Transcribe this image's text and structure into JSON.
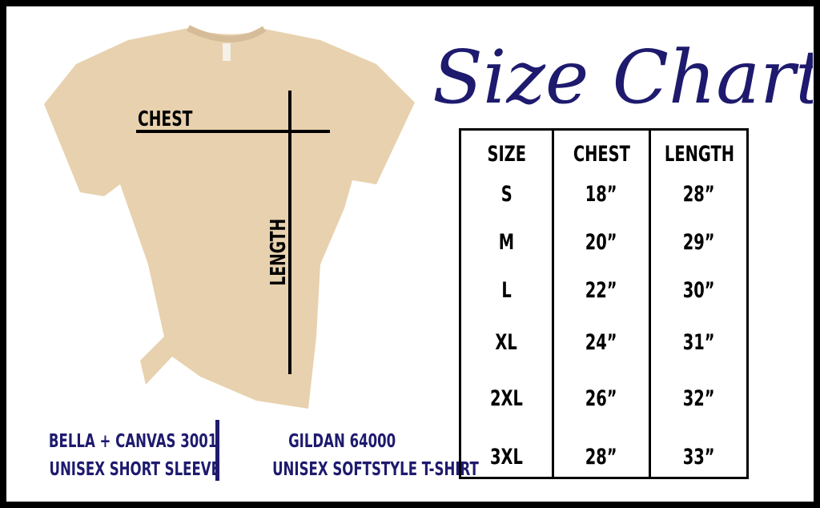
{
  "title": "Size Chart",
  "colors": {
    "accent": "#1e1a6e",
    "shirt": "#e8d1ae",
    "border": "#000000"
  },
  "shirt_labels": {
    "chest": "CHEST",
    "length": "LENGTH"
  },
  "table": {
    "headers": [
      "SIZE",
      "CHEST",
      "LENGTH"
    ],
    "rows": [
      [
        "S",
        "18”",
        "28”"
      ],
      [
        "M",
        "20”",
        "29”"
      ],
      [
        "L",
        "22”",
        "30”"
      ],
      [
        "XL",
        "24”",
        "31”"
      ],
      [
        "2XL",
        "26”",
        "32”"
      ],
      [
        "3XL",
        "28”",
        "33”"
      ]
    ]
  },
  "captions": [
    {
      "line1": "BELLA + CANVAS 3001",
      "line2": "UNISEX SHORT SLEEVE"
    },
    {
      "line1": "GILDAN 64000",
      "line2": "UNISEX SOFTSTYLE T-SHIRT"
    }
  ]
}
